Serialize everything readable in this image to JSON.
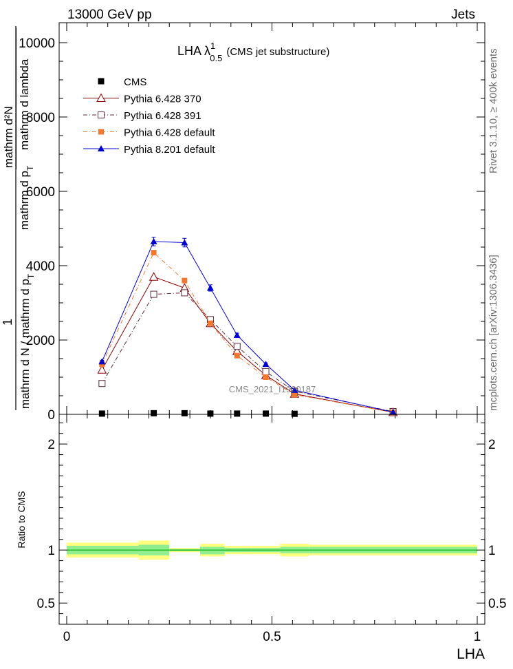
{
  "header": {
    "left": "13000 GeV pp",
    "right": "Jets"
  },
  "side_labels": {
    "rivet": "Rivet 3.1.10, ≥ 400k events",
    "mcplots": "mcplots.cern.ch [arXiv:1306.3436]"
  },
  "colors": {
    "cms": "#000000",
    "p370": "#8b0000",
    "p391": "#5a2a3a",
    "p6def": "#f07830",
    "p8def": "#0000cc",
    "band_inner": "#90ee90",
    "band_outer": "#ffff80"
  },
  "chart_data": [
    {
      "type": "line",
      "title_main": "LHA λ",
      "title_sup": "1",
      "title_sub": "0.5",
      "title_rest": "(CMS jet substructure)",
      "watermark": "CMS_2021_I1920187",
      "ylabel_num": "1",
      "ylabel_den": "mathrm d N / mathrm d p",
      "ylabel_den_sub": "T",
      "ylabel_top_num": "mathrm d²N",
      "ylabel_top_den1": "mathrm d p",
      "ylabel_top_den_sub": "T",
      "ylabel_top_den2": "mathrm d lambda",
      "xlim": [
        0,
        1
      ],
      "ylim": [
        0,
        10500
      ],
      "yticks": [
        0,
        2000,
        4000,
        6000,
        8000,
        10000
      ],
      "ytick_labels": [
        "0",
        "2000",
        "4000",
        "6000",
        "8000",
        "10000"
      ],
      "legend": [
        "CMS",
        "Pythia 6.428 370",
        "Pythia 6.428 391",
        "Pythia 6.428 default",
        "Pythia 8.201 default"
      ],
      "legend_position": "top-left",
      "series": [
        {
          "name": "CMS",
          "key": "cms",
          "x": [
            0.086,
            0.212,
            0.287,
            0.35,
            0.415,
            0.485,
            0.555
          ],
          "y": [
            20,
            30,
            30,
            20,
            20,
            20,
            15
          ]
        },
        {
          "name": "Pythia 6.428 370",
          "key": "p370",
          "x": [
            0.086,
            0.212,
            0.287,
            0.35,
            0.415,
            0.485,
            0.555,
            0.795
          ],
          "y": [
            1200,
            3700,
            3400,
            2450,
            1700,
            1050,
            550,
            55
          ]
        },
        {
          "name": "Pythia 6.428 391",
          "key": "p391",
          "x": [
            0.086,
            0.212,
            0.287,
            0.35,
            0.415,
            0.485,
            0.555,
            0.795
          ],
          "y": [
            830,
            3230,
            3270,
            2550,
            1830,
            1150,
            620,
            75
          ]
        },
        {
          "name": "Pythia 6.428 default",
          "key": "p6def",
          "x": [
            0.086,
            0.212,
            0.287,
            0.35,
            0.415,
            0.485,
            0.555,
            0.795
          ],
          "y": [
            1350,
            4350,
            3600,
            2450,
            1580,
            1000,
            530,
            55
          ]
        },
        {
          "name": "Pythia 8.201 default",
          "key": "p8def",
          "x": [
            0.086,
            0.212,
            0.287,
            0.35,
            0.415,
            0.485,
            0.555,
            0.795
          ],
          "y": [
            1420,
            4650,
            4620,
            3400,
            2130,
            1350,
            650,
            60
          ]
        }
      ]
    },
    {
      "type": "area",
      "ylabel": "Ratio to CMS",
      "xlabel": "LHA",
      "xlim": [
        0,
        1
      ],
      "ylim": [
        0.3,
        2.28
      ],
      "xticks": [
        0,
        0.5,
        1
      ],
      "xtick_labels": [
        "0",
        "0.5",
        "1"
      ],
      "yticks": [
        0.5,
        1,
        2
      ],
      "ytick_labels": [
        "0.5",
        "1",
        "2"
      ],
      "bins": [
        {
          "lo": 0.0,
          "hi": 0.175,
          "outer": [
            0.93,
            1.07
          ],
          "inner": [
            0.96,
            1.04
          ]
        },
        {
          "lo": 0.175,
          "hi": 0.25,
          "outer": [
            0.91,
            1.09
          ],
          "inner": [
            0.95,
            1.05
          ]
        },
        {
          "lo": 0.25,
          "hi": 0.325,
          "outer": [
            0.98,
            1.02
          ],
          "inner": [
            0.99,
            1.01
          ]
        },
        {
          "lo": 0.325,
          "hi": 0.385,
          "outer": [
            0.94,
            1.06
          ],
          "inner": [
            0.96,
            1.03
          ]
        },
        {
          "lo": 0.385,
          "hi": 0.45,
          "outer": [
            0.96,
            1.04
          ],
          "inner": [
            0.98,
            1.02
          ]
        },
        {
          "lo": 0.45,
          "hi": 0.52,
          "outer": [
            0.96,
            1.04
          ],
          "inner": [
            0.98,
            1.02
          ]
        },
        {
          "lo": 0.52,
          "hi": 0.59,
          "outer": [
            0.94,
            1.06
          ],
          "inner": [
            0.97,
            1.03
          ]
        },
        {
          "lo": 0.59,
          "hi": 1.0,
          "outer": [
            0.95,
            1.05
          ],
          "inner": [
            0.97,
            1.03
          ]
        }
      ]
    }
  ]
}
